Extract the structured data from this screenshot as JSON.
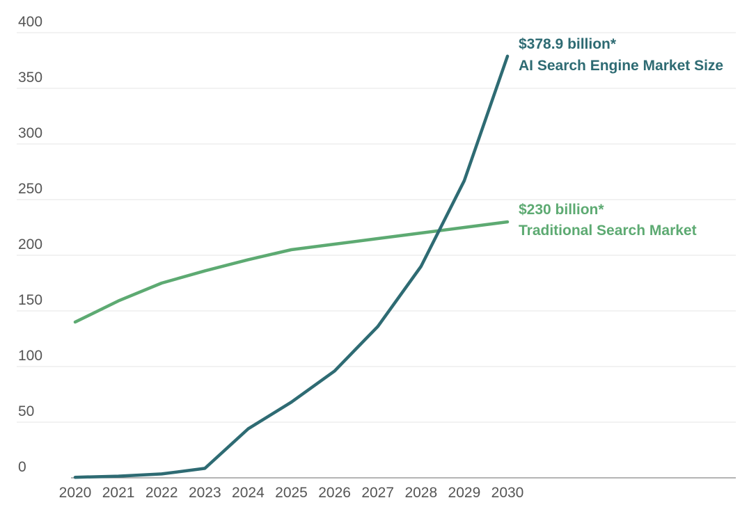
{
  "chart_data": {
    "type": "line",
    "title": "",
    "xlabel": "",
    "ylabel": "",
    "x": [
      2020,
      2021,
      2022,
      2023,
      2024,
      2025,
      2026,
      2027,
      2028,
      2029,
      2030
    ],
    "ylim": [
      0,
      400
    ],
    "y_ticks": [
      0,
      50,
      100,
      150,
      200,
      250,
      300,
      350,
      400
    ],
    "grid": true,
    "legend": "none",
    "series": [
      {
        "key": "ai",
        "color": "#2e6b73",
        "values": [
          0.5,
          1.5,
          3.5,
          8.5,
          44,
          68,
          96,
          136,
          190,
          267,
          378.9
        ],
        "annotation_value": "$378.9 billion*",
        "annotation_label": "AI Search Engine Market Size"
      },
      {
        "key": "traditional",
        "color": "#5daa72",
        "values": [
          140,
          159,
          175,
          186,
          196,
          205,
          210,
          215,
          220,
          225,
          230
        ],
        "annotation_value": "$230 billion*",
        "annotation_label": "Traditional Search Market"
      }
    ]
  }
}
